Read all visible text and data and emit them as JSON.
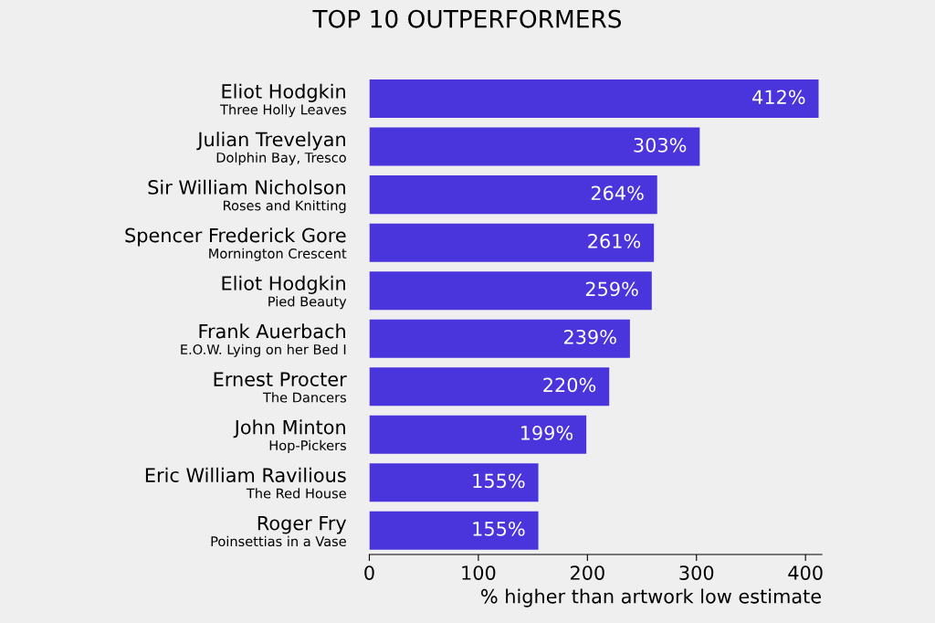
{
  "chart_data": {
    "type": "bar",
    "orientation": "horizontal",
    "title": "TOP 10 OUTPERFORMERS",
    "xlabel": "% higher than artwork low estimate",
    "categories": [
      "Eliot Hodgkin\nThree Holly Leaves",
      "Julian Trevelyan\nDolphin Bay, Tresco",
      "Sir William Nicholson\nRoses and Knitting",
      "Spencer Frederick Gore\nMornington Crescent",
      "Eliot Hodgkin\nPied Beauty",
      "Frank Auerbach\nE.O.W. Lying on her Bed I",
      "Ernest Procter\nThe Dancers",
      "John Minton\nHop-Pickers",
      "Eric William Ravilious\nThe Red House",
      "Roger Fry\nPoinsettias in a Vase"
    ],
    "values": [
      412,
      303,
      264,
      261,
      259,
      239,
      220,
      199,
      155,
      155
    ],
    "value_labels": [
      "412%",
      "303%",
      "264%",
      "261%",
      "259%",
      "239%",
      "220%",
      "199%",
      "155%",
      "155%"
    ],
    "color": "#4a35dc",
    "xlim": [
      0,
      415
    ],
    "xticks": [
      0,
      100,
      200,
      300,
      400
    ],
    "grid": false
  }
}
